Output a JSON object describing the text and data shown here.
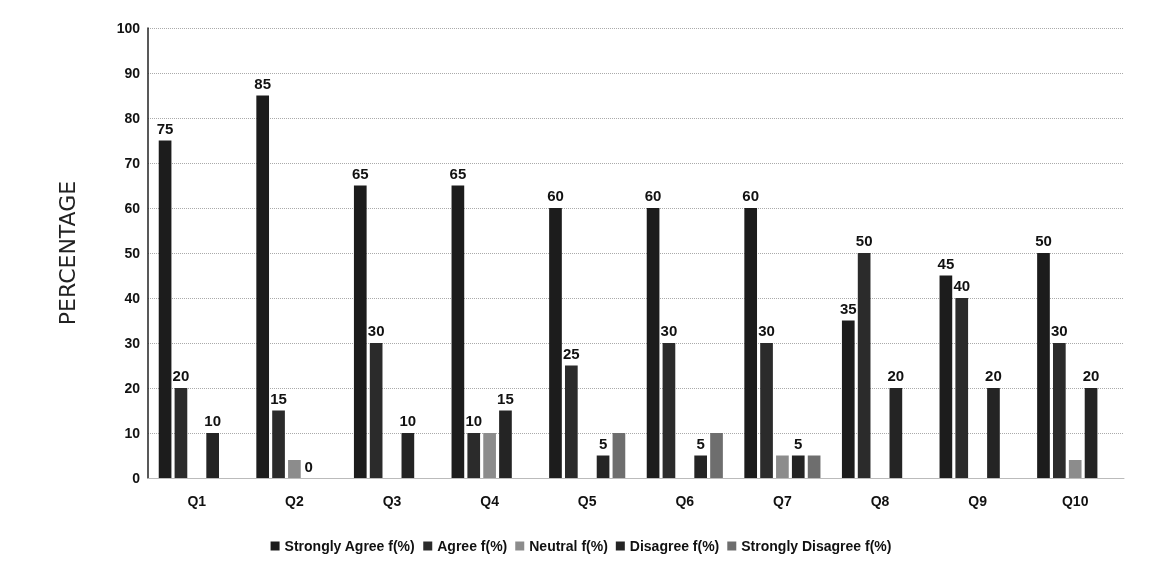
{
  "chart_data": {
    "type": "bar",
    "ylabel": "PERCENTAGE",
    "categories": [
      "Q1",
      "Q2",
      "Q3",
      "Q4",
      "Q5",
      "Q6",
      "Q7",
      "Q8",
      "Q9",
      "Q10"
    ],
    "series": [
      {
        "name": "Strongly Agree f(%)",
        "color": "#1c1c1c",
        "values": [
          75,
          85,
          65,
          65,
          60,
          60,
          60,
          35,
          45,
          50
        ],
        "value_labels": [
          "75",
          "85",
          "65",
          "65",
          "60",
          "60",
          "60",
          "35",
          "45",
          "50"
        ]
      },
      {
        "name": "Agree f(%)",
        "color": "#2b2b2b",
        "values": [
          20,
          15,
          30,
          10,
          25,
          30,
          30,
          50,
          40,
          30
        ],
        "value_labels": [
          "20",
          "15",
          "30",
          "10",
          "25",
          "30",
          "30",
          "50",
          "40",
          "30"
        ]
      },
      {
        "name": "Neutral f(%)",
        "color": "#8c8c8c",
        "values": [
          null,
          4,
          null,
          10,
          null,
          null,
          5,
          null,
          null,
          4
        ],
        "value_labels": [
          null,
          null,
          null,
          null,
          null,
          null,
          null,
          null,
          null,
          null
        ]
      },
      {
        "name": "Disagree f(%)",
        "color": "#242424",
        "values": [
          10,
          null,
          10,
          15,
          5,
          5,
          5,
          20,
          20,
          20
        ],
        "value_labels": [
          "10",
          null,
          "10",
          "15",
          "5",
          "5",
          "5",
          "20",
          "20",
          "20"
        ]
      },
      {
        "name": "Strongly Disagree f(%)",
        "color": "#6e6e6e",
        "values": [
          null,
          null,
          null,
          null,
          10,
          10,
          5,
          null,
          null,
          null
        ],
        "value_labels": [
          null,
          null,
          null,
          null,
          null,
          null,
          null,
          null,
          null,
          null
        ]
      }
    ],
    "annotations": [
      {
        "text": "0",
        "x": "Q2",
        "y": 0
      }
    ],
    "ylim": [
      0,
      100
    ],
    "yticks": [
      0,
      10,
      20,
      30,
      40,
      50,
      60,
      70,
      80,
      90,
      100
    ],
    "grid": "y",
    "legend": "bottom"
  }
}
